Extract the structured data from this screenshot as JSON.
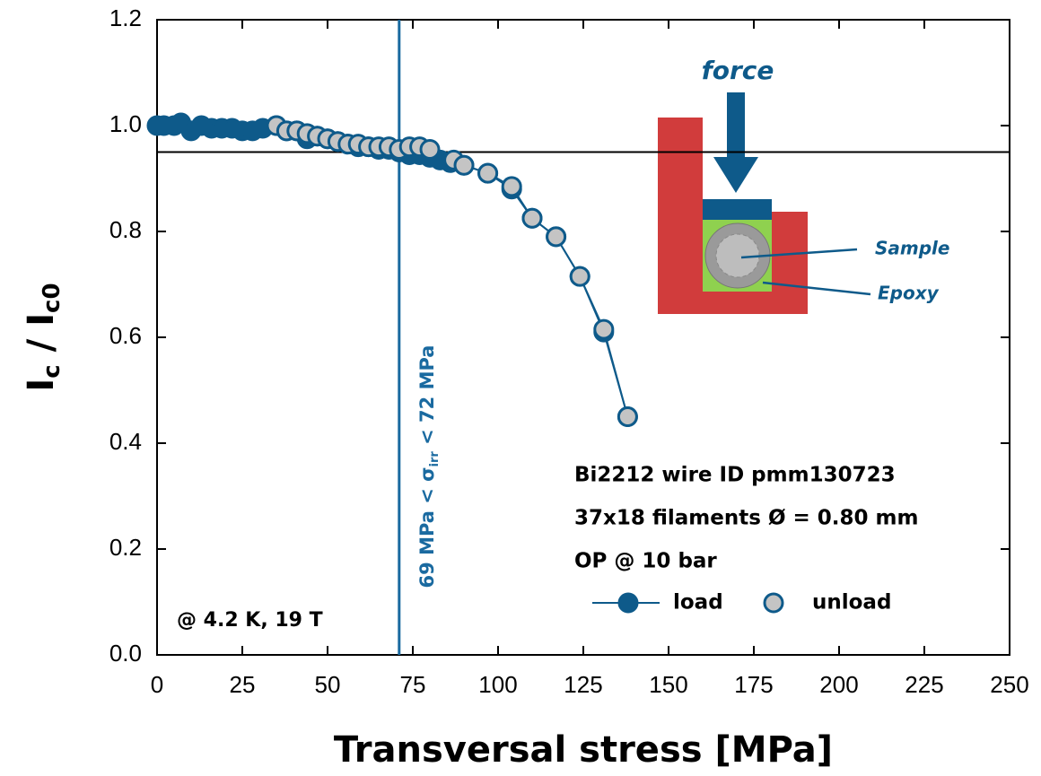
{
  "chart_data": {
    "type": "line",
    "x_label": "Transversal stress [MPa]",
    "y_label": [
      "I",
      "c",
      " / I",
      "c0"
    ],
    "xlim": [
      0,
      250
    ],
    "xticks": [
      0,
      25,
      50,
      75,
      100,
      125,
      150,
      175,
      200,
      225,
      250
    ],
    "ylim": [
      0,
      1.2
    ],
    "yticks": [
      {
        "value": 0,
        "label": "0.0"
      },
      {
        "value": 0.2,
        "label": "0.2"
      },
      {
        "value": 0.4,
        "label": "0.4"
      },
      {
        "value": 0.6,
        "label": "0.6"
      },
      {
        "value": 0.8,
        "label": "0.8"
      },
      {
        "value": 1.0,
        "label": "1.0"
      },
      {
        "value": 1.2,
        "label": "1.2"
      }
    ],
    "line_color": "#0e5a8a",
    "hline": 0.95,
    "vline": 71,
    "vline_color": "#1a6aa0",
    "vline_label": [
      "69 MPa < σ",
      "irr",
      " < 72 MPa"
    ],
    "info": [
      "Bi2212 wire ID pmm130723",
      "37x18 filaments Ø = 0.80 mm",
      "OP @ 10 bar"
    ],
    "condition": "@ 4.2 K, 19 T",
    "inset": {
      "force": "force",
      "sample": "Sample",
      "epoxy": "Epoxy"
    },
    "series": [
      {
        "name": "load",
        "color": "#0e5a8a",
        "x": [
          0,
          2,
          5,
          7,
          10,
          13,
          16,
          19,
          22,
          25,
          28,
          31,
          35,
          38,
          41,
          44,
          47,
          50,
          53,
          56,
          59,
          62,
          65,
          68,
          71,
          74,
          77,
          80,
          83,
          86,
          90,
          97,
          104,
          110,
          117,
          124,
          131,
          138
        ],
        "values": [
          1.0,
          1.0,
          1.0,
          1.005,
          0.99,
          1.0,
          0.995,
          0.995,
          0.995,
          0.99,
          0.99,
          0.995,
          1.0,
          0.99,
          0.99,
          0.975,
          0.98,
          0.975,
          0.97,
          0.965,
          0.96,
          0.96,
          0.955,
          0.955,
          0.95,
          0.945,
          0.945,
          0.94,
          0.935,
          0.93,
          0.925,
          0.91,
          0.88,
          0.825,
          0.79,
          0.715,
          0.61,
          0.45
        ]
      },
      {
        "name": "unload",
        "color": "#c4c4c4",
        "x": [
          35,
          38,
          41,
          44,
          47,
          50,
          53,
          56,
          59,
          62,
          65,
          68,
          71,
          74,
          77,
          80,
          87,
          90,
          97,
          104,
          110,
          117,
          124,
          131,
          138
        ],
        "values": [
          1.0,
          0.99,
          0.99,
          0.985,
          0.98,
          0.975,
          0.97,
          0.965,
          0.965,
          0.96,
          0.96,
          0.96,
          0.955,
          0.96,
          0.96,
          0.955,
          0.935,
          0.925,
          0.91,
          0.885,
          0.825,
          0.79,
          0.715,
          0.615,
          0.45
        ]
      }
    ]
  }
}
